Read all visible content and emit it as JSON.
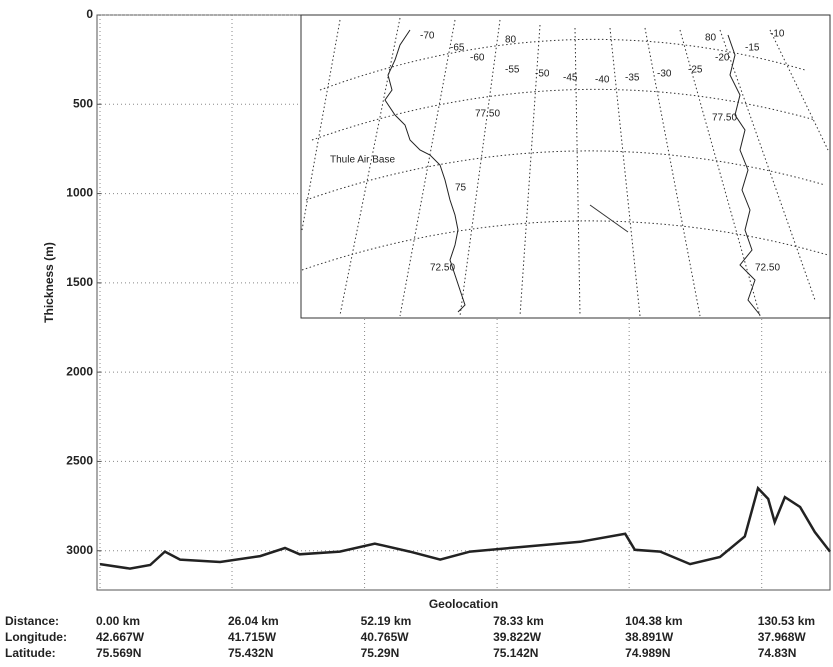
{
  "chart_data": {
    "type": "line",
    "y_label": "Thickness (m)",
    "x_label": "Geolocation",
    "row_labels": [
      "Distance:",
      "Longitude:",
      "Latitude:"
    ],
    "x": [
      0,
      5.9,
      9.9,
      12.8,
      15.8,
      23.7,
      31.6,
      36.5,
      39.4,
      47.3,
      54.2,
      61.1,
      67.1,
      73,
      82.8,
      94.7,
      103.6,
      105.5,
      110.5,
      116.4,
      122.3,
      127.2,
      129.8,
      131.8,
      133.1,
      135.1,
      138.1,
      141,
      144
    ],
    "values": [
      3075,
      3100,
      3080,
      3005,
      3050,
      3063,
      3030,
      2985,
      3020,
      3005,
      2960,
      3005,
      3050,
      3005,
      2980,
      2950,
      2905,
      2995,
      3005,
      3075,
      3035,
      2920,
      2650,
      2710,
      2840,
      2700,
      2755,
      2895,
      3005
    ],
    "color": "#222222",
    "xlim": [
      0,
      144
    ],
    "xticks": [
      {
        "value": 0,
        "label": "0.00 km"
      },
      {
        "value": 26.04,
        "label": "26.04 km"
      },
      {
        "value": 52.19,
        "label": "52.19 km"
      },
      {
        "value": 78.33,
        "label": "78.33 km"
      },
      {
        "value": 104.38,
        "label": "104.38 km"
      },
      {
        "value": 130.53,
        "label": "130.53 km"
      }
    ],
    "longitude_labels": [
      "42.667W",
      "41.715W",
      "40.765W",
      "39.822W",
      "38.891W",
      "37.968W"
    ],
    "latitude_labels": [
      "75.569N",
      "75.432N",
      "75.29N",
      "75.142N",
      "74.989N",
      "74.83N"
    ],
    "ylim": [
      0,
      3220
    ],
    "y_inverted": true,
    "yticks": [
      0,
      500,
      1000,
      1500,
      2000,
      2500,
      3000
    ],
    "grid": true,
    "inset_labels": [
      "-70",
      "-65",
      "80",
      "-60",
      "-55",
      "-50",
      "-45",
      "-40",
      "-35",
      "-30",
      "-25",
      "80",
      "-20",
      "-15",
      "-10",
      "77.50",
      "77.50",
      "Thule Air Base",
      "75",
      "72.50",
      "72.50"
    ]
  }
}
